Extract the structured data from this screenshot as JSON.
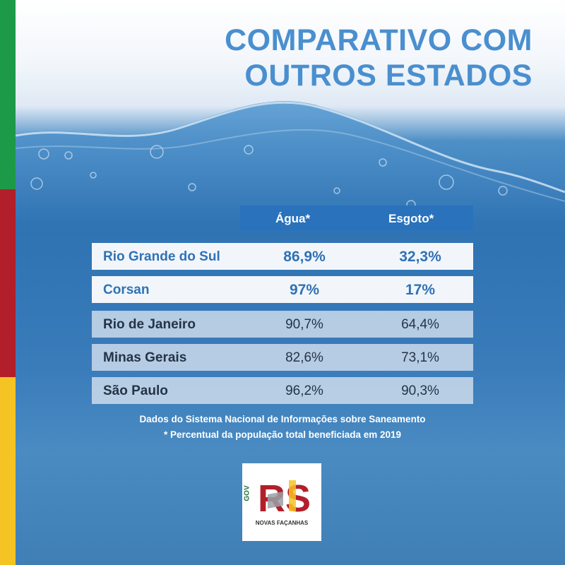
{
  "title": {
    "line1": "COMPARATIVO COM",
    "line2": "OUTROS ESTADOS"
  },
  "table": {
    "headers": [
      "Água*",
      "Esgoto*"
    ],
    "rows": [
      {
        "name": "Rio Grande do Sul",
        "agua": "86,9%",
        "esgoto": "32,3%"
      },
      {
        "name": "Corsan",
        "agua": "97%",
        "esgoto": "17%"
      },
      {
        "name": "Rio de Janeiro",
        "agua": "90,7%",
        "esgoto": "64,4%"
      },
      {
        "name": "Minas Gerais",
        "agua": "82,6%",
        "esgoto": "73,1%"
      },
      {
        "name": "São Paulo",
        "agua": "96,2%",
        "esgoto": "90,3%"
      }
    ]
  },
  "notes": {
    "source": "Dados do Sistema Nacional de Informações sobre Saneamento",
    "footnote": "* Percentual da população total beneficiada em 2019"
  },
  "logo": {
    "gov": "GOV",
    "rs": "RS",
    "tagline": "NOVAS FAÇANHAS"
  },
  "colors": {
    "accent": "#4a8fcf",
    "header_bg": "#2a72bb",
    "stripe_green": "#1d9a48",
    "stripe_red": "#b21f2a",
    "stripe_yellow": "#f6c324"
  }
}
